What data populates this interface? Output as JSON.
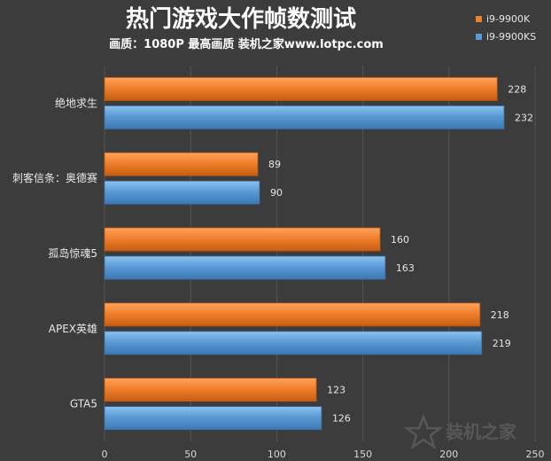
{
  "chart_data": {
    "type": "bar",
    "orientation": "horizontal",
    "title": "热门游戏大作帧数测试",
    "subtitle": "画质：1080P 最高画质 装机之家www.lotpc.com",
    "categories": [
      "绝地求生",
      "刺客信条：奥德赛",
      "孤岛惊魂5",
      "APEX英雄",
      "GTA5"
    ],
    "series": [
      {
        "name": "i9-9900K",
        "color": "#f07f2d",
        "values": [
          228,
          89,
          160,
          218,
          123
        ]
      },
      {
        "name": "i9-9900KS",
        "color": "#5b9bd5",
        "values": [
          232,
          90,
          163,
          219,
          126
        ]
      }
    ],
    "xlim": [
      0,
      250
    ],
    "xticks": [
      0,
      50,
      100,
      150,
      200,
      250
    ],
    "grid": true,
    "legend_position": "top-right"
  },
  "watermark": {
    "text": "装机之家",
    "logo": "star-logo"
  }
}
